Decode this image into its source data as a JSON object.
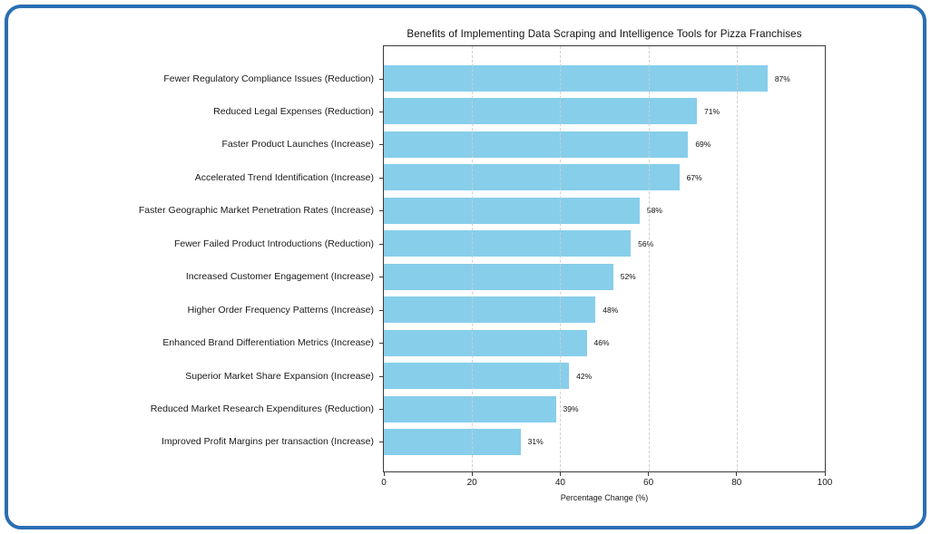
{
  "frame": {
    "border_color": "#2a6fb4",
    "background": "#ffffff"
  },
  "chart_data": {
    "type": "bar",
    "orientation": "horizontal",
    "title": "Benefits of Implementing Data Scraping and Intelligence Tools for Pizza Franchises",
    "xlabel": "Percentage Change (%)",
    "xlim": [
      0,
      100
    ],
    "xticks": [
      0,
      20,
      40,
      60,
      80,
      100
    ],
    "grid": "vertical dashed, drawn over bars",
    "legend": "none",
    "bar_color": "#87CEEB",
    "value_suffix": "%",
    "categories": [
      "Fewer Regulatory Compliance Issues (Reduction)",
      "Reduced Legal Expenses (Reduction)",
      "Faster Product Launches (Increase)",
      "Accelerated Trend Identification (Increase)",
      "Faster Geographic Market Penetration Rates (Increase)",
      "Fewer Failed Product Introductions (Reduction)",
      "Increased Customer Engagement (Increase)",
      "Higher Order Frequency Patterns (Increase)",
      "Enhanced Brand Differentiation Metrics (Increase)",
      "Superior Market Share Expansion (Increase)",
      "Reduced Market Research Expenditures (Reduction)",
      "Improved Profit Margins per transaction (Increase)"
    ],
    "values": [
      87,
      71,
      69,
      67,
      58,
      56,
      52,
      48,
      46,
      42,
      39,
      31
    ]
  }
}
